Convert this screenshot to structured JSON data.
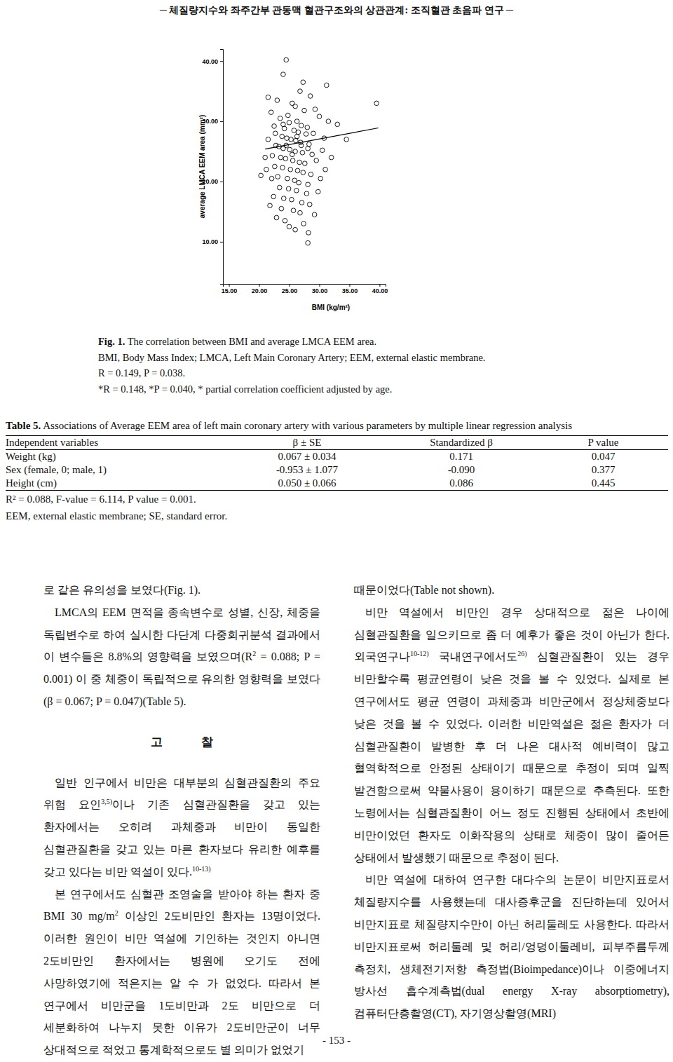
{
  "header": "─ 체질량지수와 좌주간부 관동맥 혈관구조와의 상관관계: 조직혈관 초음파 연구 ─",
  "chart_data": {
    "type": "scatter",
    "xlabel": "BMI (kg/m²)",
    "ylabel": "average LMCA EEM area (mm²)",
    "marker": "circle-open",
    "color": "#000000",
    "grid": false,
    "xlim": [
      14,
      41
    ],
    "ylim": [
      3,
      42
    ],
    "xticks": [
      {
        "value": 15,
        "label": "15.00"
      },
      {
        "value": 20,
        "label": "20.00"
      },
      {
        "value": 25,
        "label": "25.00"
      },
      {
        "value": 30,
        "label": "30.00"
      },
      {
        "value": 35,
        "label": "35.00"
      },
      {
        "value": 40,
        "label": "40.00"
      }
    ],
    "yticks": [
      {
        "value": 10,
        "label": "10.00"
      },
      {
        "value": 20,
        "label": "20.00"
      },
      {
        "value": 30,
        "label": "30.00"
      },
      {
        "value": 40,
        "label": "40.00"
      }
    ],
    "x": [
      24.5,
      24.0,
      27.3,
      31.2,
      39.5,
      26.8,
      21.5,
      23.0,
      28.5,
      25.5,
      29.3,
      22.0,
      26.0,
      27.5,
      24.8,
      30.0,
      31.5,
      33.0,
      23.5,
      25.0,
      26.3,
      27.0,
      28.0,
      22.5,
      24.2,
      25.8,
      26.5,
      27.8,
      29.0,
      23.8,
      24.6,
      25.3,
      26.1,
      26.9,
      28.3,
      22.8,
      23.3,
      24.0,
      25.1,
      26.0,
      27.2,
      28.8,
      30.5,
      21.0,
      22.2,
      23.6,
      24.4,
      25.6,
      26.7,
      27.6,
      29.5,
      32.0,
      20.3,
      21.2,
      22.6,
      23.9,
      25.2,
      26.4,
      27.3,
      28.6,
      31.0,
      34.5,
      22.1,
      23.1,
      24.7,
      25.9,
      26.6,
      28.1,
      30.2,
      23.4,
      24.9,
      26.2,
      27.9,
      29.8,
      22.4,
      24.1,
      25.4,
      27.1,
      28.4,
      21.8,
      23.7,
      25.7,
      26.8,
      22.9,
      24.3,
      27.4,
      29.2,
      25.0,
      26.0,
      28.2,
      28.1,
      24.5,
      26.3,
      21.5,
      27.0,
      28.1,
      25.5,
      24.0,
      22.7,
      30.8
    ],
    "values": [
      40.2,
      37.8,
      36.5,
      36.0,
      33.0,
      35.0,
      34.0,
      33.5,
      34.2,
      33.0,
      32.0,
      31.5,
      32.5,
      31.8,
      31.0,
      30.8,
      30.0,
      29.5,
      30.5,
      29.8,
      30.0,
      29.3,
      29.0,
      29.2,
      28.8,
      28.5,
      28.2,
      27.9,
      28.0,
      27.5,
      27.2,
      27.0,
      26.8,
      26.5,
      26.2,
      26.0,
      25.8,
      25.5,
      25.3,
      25.0,
      24.8,
      24.5,
      25.2,
      24.0,
      24.3,
      24.0,
      23.8,
      23.5,
      23.2,
      23.0,
      23.5,
      24.0,
      21.0,
      22.0,
      22.5,
      22.3,
      22.0,
      21.8,
      21.5,
      21.2,
      22.0,
      27.0,
      20.5,
      20.8,
      20.5,
      20.2,
      19.8,
      19.5,
      20.5,
      19.0,
      18.8,
      18.5,
      18.0,
      18.3,
      17.5,
      17.2,
      17.0,
      16.5,
      16.2,
      16.0,
      15.5,
      15.2,
      14.8,
      14.0,
      13.5,
      13.0,
      14.5,
      12.5,
      12.0,
      11.5,
      9.8,
      26.0,
      27.5,
      27.0,
      26.0,
      25.5,
      24.5,
      29.5,
      28.0,
      27.2
    ],
    "regression": {
      "x": [
        21.0,
        39.8
      ],
      "y": [
        25.4,
        28.9
      ]
    }
  },
  "figure_caption": {
    "label": "Fig. 1.",
    "title": "The correlation between BMI and average LMCA EEM area.",
    "lines": [
      "BMI, Body Mass Index; LMCA, Left Main Coronary Artery; EEM, external elastic membrane.",
      "R = 0.149, P = 0.038.",
      "*R = 0.148, *P = 0.040, * partial correlation coefficient adjusted by age."
    ]
  },
  "table": {
    "label": "Table 5.",
    "title": "Associations of Average EEM area of left main coronary artery with various parameters by multiple linear regression analysis",
    "header": [
      "Independent variables",
      "β ± SE",
      "Standardized β",
      "P value"
    ],
    "rows": [
      [
        "Weight (kg)",
        "0.067 ± 0.034",
        "0.171",
        "0.047"
      ],
      [
        "Sex (female, 0; male, 1)",
        "-0.953 ± 1.077",
        "-0.090",
        "0.377"
      ],
      [
        "Height (cm)",
        "0.050 ± 0.066",
        "0.086",
        "0.445"
      ]
    ],
    "notes": [
      "R² = 0.088, F-value = 6.114, P value = 0.001.",
      "EEM, external elastic membrane; SE, standard error."
    ]
  },
  "body": {
    "left_column": [
      {
        "paragraphs": [
          [
            "로 같은 유의성을 보였다(Fig. 1)."
          ],
          [
            "LMCA의 EEM 면적을 종속변수로 성별, 신장, 체중을 독립변수로 하여 실시한 다단계 다중회귀분석 결과에서 이 변수들은 8.8%의 영향력을 보였으며(R",
            {
              "sup": "2"
            },
            " = 0.088; P = 0.001) 이 중 체중이 독립적으로 유의한 영향력을 보였다(β = 0.067; P = 0.047)(Table 5)."
          ]
        ]
      },
      {
        "heading": "고 찰",
        "paragraphs": [
          [
            "일반 인구에서 비만은 대부분의 심혈관질환의 주요 위험 요인",
            {
              "sup": "3,5)"
            },
            "이나 기존 심혈관질환을 갖고 있는 환자에서는 오히려 과체중과 비만이 동일한 심혈관질환을 갖고 있는 마른 환자보다 유리한 예후를 갖고 있다는 비만 역설이 있다.",
            {
              "sup": "10-13)"
            }
          ],
          [
            "본 연구에서도 심혈관 조영술을 받아야 하는 환자 중 BMI 30 mg/m",
            {
              "sup": "2"
            },
            " 이상인 2도비만인 환자는 13명이었다. 이러한 원인이 비만 역설에 기인하는 것인지 아니면 2도비만인 환자에서는 병원에 오기도 전에 사망하였기에 적은지는 알 수 가 없었다. 따라서 본 연구에서 비만군을 1도비만과 2도 비만으로 더 세분화하여 나누지 못한 이유가 2도비만군이 너무 상대적으로 적었고 통계학적으로도 별 의미가 없었기"
          ]
        ]
      }
    ],
    "right_column": [
      {
        "paragraphs": [
          [
            "때문이었다(Table not shown)."
          ],
          [
            "비만 역설에서 비만인 경우 상대적으로 젊은 나이에 심혈관질환을 일으키므로 좀 더 예후가 좋은 것이 아닌가 한다. 외국연구나",
            {
              "sup": "10-12)"
            },
            " 국내연구에서도",
            {
              "sup": "26)"
            },
            " 심혈관질환이 있는 경우 비만할수록 평균연령이 낮은 것을 볼 수 있었다. 실제로 본 연구에서도 평균 연령이 과체중과 비만군에서 정상체중보다 낮은 것을 볼 수 있었다. 이러한 비만역설은 젊은 환자가 더 심혈관질환이 발병한 후 더 나은 대사적 예비력이 많고 혈역학적으로 안정된 상태이기 때문으로 추정이 되며 일찍 발견함으로써 약물사용이 용이하기 때문으로 추측된다. 또한 노령에서는 심혈관질환이 어느 정도 진행된 상태에서 초반에 비만이었던 환자도 이화작용의 상태로 체중이 많이 줄어든 상태에서 발생했기 때문으로 추정이 된다."
          ],
          [
            "비만 역설에 대하여 연구한 대다수의 논문이 비만지표로서 체질량지수를 사용했는데 대사증후군을 진단하는데 있어서 비만지표로 체질량지수만이 아닌 허리둘레도 사용한다. 따라서 비만지표로써 허리둘레 및 허리/엉덩이둘레비, 피부주름두께 측정치, 생체전기저항 측정법(Bioimpedance)이나 이중에너지 방사선 흡수계측법(dual energy X-ray absorptiometry), 컴퓨터단층촬영(CT), 자기영상촬영(MRI)"
          ]
        ]
      }
    ]
  },
  "page_number": "- 153 -"
}
